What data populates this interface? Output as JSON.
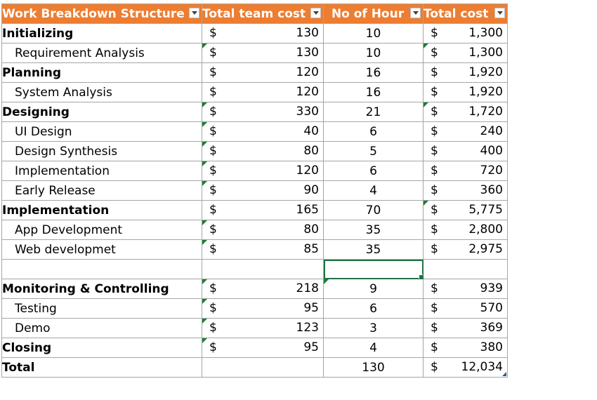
{
  "headers": [
    {
      "label": "Work Breakdown Structure",
      "filter_icon": "chevron-down-icon"
    },
    {
      "label": "Total team cost",
      "filter_icon": "chevron-down-icon"
    },
    {
      "label": "No of Hour",
      "filter_icon": "chevron-down-icon"
    },
    {
      "label": "Total cost",
      "filter_icon": "chevron-down-icon"
    }
  ],
  "currency_symbol": "$",
  "rows": [
    {
      "name": "Initializing",
      "bold": true,
      "team_cost": "130",
      "hours": "10",
      "total_cost": "1,300"
    },
    {
      "name": "Requirement Analysis",
      "bold": false,
      "team_cost": "130",
      "hours": "10",
      "total_cost": "1,300"
    },
    {
      "name": "Planning",
      "bold": true,
      "team_cost": "120",
      "hours": "16",
      "total_cost": "1,920"
    },
    {
      "name": "System Analysis",
      "bold": false,
      "team_cost": "120",
      "hours": "16",
      "total_cost": "1,920"
    },
    {
      "name": "Designing",
      "bold": true,
      "team_cost": "330",
      "hours": "21",
      "total_cost": "1,720"
    },
    {
      "name": "UI Design",
      "bold": false,
      "team_cost": "40",
      "hours": "6",
      "total_cost": "240"
    },
    {
      "name": "Design Synthesis",
      "bold": false,
      "team_cost": "80",
      "hours": "5",
      "total_cost": "400"
    },
    {
      "name": "Implementation",
      "bold": false,
      "team_cost": "120",
      "hours": "6",
      "total_cost": "720"
    },
    {
      "name": "Early Release",
      "bold": false,
      "team_cost": "90",
      "hours": "4",
      "total_cost": "360"
    },
    {
      "name": "Implementation",
      "bold": true,
      "team_cost": "165",
      "hours": "70",
      "total_cost": "5,775"
    },
    {
      "name": "App Development",
      "bold": false,
      "team_cost": "80",
      "hours": "35",
      "total_cost": "2,800"
    },
    {
      "name": "Web developmet",
      "bold": false,
      "team_cost": "85",
      "hours": "35",
      "total_cost": "2,975"
    },
    {
      "name": "",
      "bold": false,
      "team_cost": "",
      "hours": "",
      "total_cost": ""
    },
    {
      "name": "Monitoring & Controlling",
      "bold": true,
      "team_cost": "218",
      "hours": "9",
      "total_cost": "939"
    },
    {
      "name": "Testing",
      "bold": false,
      "team_cost": "95",
      "hours": "6",
      "total_cost": "570"
    },
    {
      "name": "Demo",
      "bold": false,
      "team_cost": "123",
      "hours": "3",
      "total_cost": "369"
    },
    {
      "name": "Closing",
      "bold": true,
      "team_cost": "95",
      "hours": "4",
      "total_cost": "380"
    }
  ],
  "total": {
    "name": "Total",
    "team_cost": "",
    "hours": "130",
    "total_cost": "12,034"
  },
  "colors": {
    "header_bg": "#ed7d31",
    "header_text": "#ffffff",
    "grid": "#a6a6a6",
    "error_indicator": "#1e7d32",
    "selection": "#217346"
  }
}
